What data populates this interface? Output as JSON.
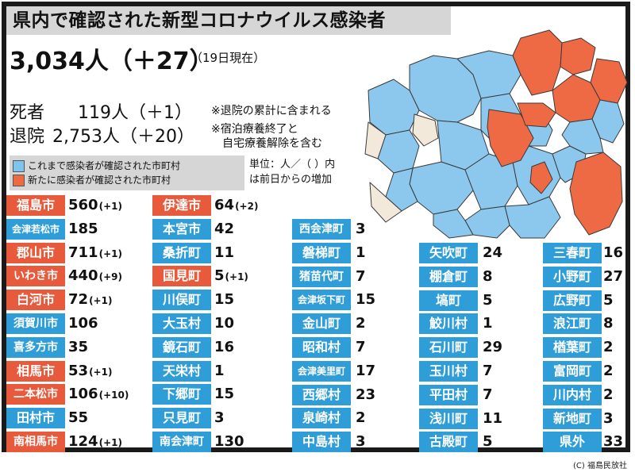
{
  "title": "県内で確認された新型コロナウイルス感染者",
  "summary": {
    "total": "3,034人（＋27）",
    "as_of": "（19日現在）",
    "deaths_label": "死者",
    "deaths_value": "119人（＋1）",
    "deaths_note": "※退院の累計に含まれる",
    "discharged_label": "退院",
    "discharged_value": "2,753人（＋20）",
    "discharged_note1": "※宿泊療養終了と",
    "discharged_note2": "自宅療養解除を含む"
  },
  "legend": {
    "blue_text": "これまで感染者が確認された市町村",
    "red_text": "新たに感染者が確認された市町村",
    "blue_color": "#7fc4ec",
    "red_color": "#ee6a44",
    "unit_note": "単位：人／（ ）内\nは前日からの増加"
  },
  "columns": [
    [
      {
        "name": "福島市",
        "value": "560",
        "inc": "(+1)",
        "new": true
      },
      {
        "name": "会津若松市",
        "value": "185",
        "inc": "",
        "new": false
      },
      {
        "name": "郡山市",
        "value": "711",
        "inc": "(+1)",
        "new": true
      },
      {
        "name": "いわき市",
        "value": "440",
        "inc": "(+9)",
        "new": true
      },
      {
        "name": "白河市",
        "value": "72",
        "inc": "(+1)",
        "new": true
      },
      {
        "name": "須賀川市",
        "value": "106",
        "inc": "",
        "new": false
      },
      {
        "name": "喜多方市",
        "value": "35",
        "inc": "",
        "new": false
      },
      {
        "name": "相馬市",
        "value": "53",
        "inc": "(+1)",
        "new": true
      },
      {
        "name": "二本松市",
        "value": "106",
        "inc": "(+10)",
        "new": true
      },
      {
        "name": "田村市",
        "value": "55",
        "inc": "",
        "new": false
      },
      {
        "name": "南相馬市",
        "value": "124",
        "inc": "(+1)",
        "new": true
      }
    ],
    [
      {
        "name": "伊達市",
        "value": "64",
        "inc": "(+2)",
        "new": true
      },
      {
        "name": "本宮市",
        "value": "42",
        "inc": "",
        "new": false
      },
      {
        "name": "桑折町",
        "value": "11",
        "inc": "",
        "new": false
      },
      {
        "name": "国見町",
        "value": "5",
        "inc": "(+1)",
        "new": true
      },
      {
        "name": "川俣町",
        "value": "15",
        "inc": "",
        "new": false
      },
      {
        "name": "大玉村",
        "value": "10",
        "inc": "",
        "new": false
      },
      {
        "name": "鏡石町",
        "value": "16",
        "inc": "",
        "new": false
      },
      {
        "name": "天栄村",
        "value": "1",
        "inc": "",
        "new": false
      },
      {
        "name": "下郷町",
        "value": "15",
        "inc": "",
        "new": false
      },
      {
        "name": "只見町",
        "value": "3",
        "inc": "",
        "new": false
      },
      {
        "name": "南会津町",
        "value": "130",
        "inc": "",
        "new": false
      }
    ],
    [
      {
        "name": "西会津町",
        "value": "3",
        "inc": "",
        "new": false
      },
      {
        "name": "磐梯町",
        "value": "1",
        "inc": "",
        "new": false
      },
      {
        "name": "猪苗代町",
        "value": "7",
        "inc": "",
        "new": false
      },
      {
        "name": "会津坂下町",
        "value": "15",
        "inc": "",
        "new": false
      },
      {
        "name": "金山町",
        "value": "2",
        "inc": "",
        "new": false
      },
      {
        "name": "昭和村",
        "value": "7",
        "inc": "",
        "new": false
      },
      {
        "name": "会津美里町",
        "value": "17",
        "inc": "",
        "new": false
      },
      {
        "name": "西郷村",
        "value": "23",
        "inc": "",
        "new": false
      },
      {
        "name": "泉崎村",
        "value": "2",
        "inc": "",
        "new": false
      },
      {
        "name": "中島村",
        "value": "3",
        "inc": "",
        "new": false
      }
    ],
    [
      {
        "name": "矢吹町",
        "value": "24",
        "inc": "",
        "new": false
      },
      {
        "name": "棚倉町",
        "value": "8",
        "inc": "",
        "new": false
      },
      {
        "name": "塙町",
        "value": "5",
        "inc": "",
        "new": false
      },
      {
        "name": "鮫川村",
        "value": "1",
        "inc": "",
        "new": false
      },
      {
        "name": "石川町",
        "value": "29",
        "inc": "",
        "new": false
      },
      {
        "name": "玉川村",
        "value": "7",
        "inc": "",
        "new": false
      },
      {
        "name": "平田村",
        "value": "7",
        "inc": "",
        "new": false
      },
      {
        "name": "浅川町",
        "value": "11",
        "inc": "",
        "new": false
      },
      {
        "name": "古殿町",
        "value": "5",
        "inc": "",
        "new": false
      }
    ],
    [
      {
        "name": "三春町",
        "value": "16",
        "inc": "",
        "new": false
      },
      {
        "name": "小野町",
        "value": "27",
        "inc": "",
        "new": false
      },
      {
        "name": "広野町",
        "value": "5",
        "inc": "",
        "new": false
      },
      {
        "name": "浪江町",
        "value": "8",
        "inc": "",
        "new": false
      },
      {
        "name": "楢葉町",
        "value": "2",
        "inc": "",
        "new": false
      },
      {
        "name": "富岡町",
        "value": "2",
        "inc": "",
        "new": false
      },
      {
        "name": "川内村",
        "value": "2",
        "inc": "",
        "new": false
      },
      {
        "name": "新地町",
        "value": "3",
        "inc": "",
        "new": false
      },
      {
        "name": "県外",
        "value": "33",
        "inc": "",
        "new": false
      }
    ]
  ],
  "map_colors": {
    "blue": "#8cc8ee",
    "red": "#ee6a44",
    "beige": "#f3e9da",
    "border": "#3a3a3a"
  },
  "credit": "(C) 福島民放社"
}
